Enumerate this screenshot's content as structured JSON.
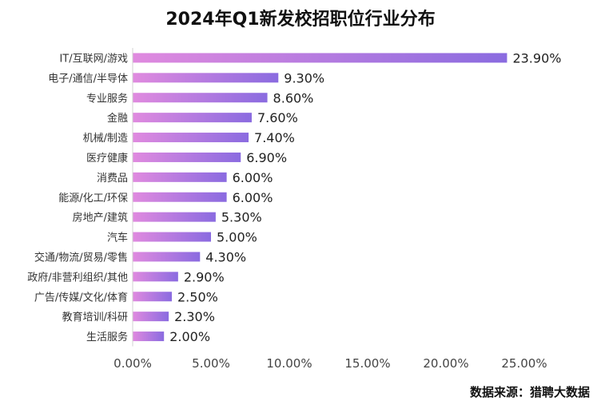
{
  "chart_data": {
    "type": "bar",
    "orientation": "horizontal",
    "title": "2024年Q1新发校招职位行业分布",
    "categories": [
      "IT/互联网/游戏",
      "电子/通信/半导体",
      "专业服务",
      "金融",
      "机械/制造",
      "医疗健康",
      "消费品",
      "能源/化工/环保",
      "房地产/建筑",
      "汽车",
      "交通/物流/贸易/零售",
      "政府/非营利组织/其他",
      "广告/传媒/文化/体育",
      "教育培训/科研",
      "生活服务"
    ],
    "values": [
      23.9,
      9.3,
      8.6,
      7.6,
      7.4,
      6.9,
      6.0,
      6.0,
      5.3,
      5.0,
      4.3,
      2.9,
      2.5,
      2.3,
      2.0
    ],
    "value_labels": [
      "23.90%",
      "9.30%",
      "8.60%",
      "7.60%",
      "7.40%",
      "6.90%",
      "6.00%",
      "6.00%",
      "5.30%",
      "5.00%",
      "4.30%",
      "2.90%",
      "2.50%",
      "2.30%",
      "2.00%"
    ],
    "x_ticks": [
      "0.00%",
      "5.00%",
      "10.00%",
      "15.00%",
      "20.00%",
      "25.00%"
    ],
    "xlim": [
      0,
      25
    ],
    "grid": false,
    "legend": "none",
    "bar_gradient": [
      "#e08adf",
      "#8a6be0"
    ]
  },
  "source": "数据来源：猎聘大数据"
}
